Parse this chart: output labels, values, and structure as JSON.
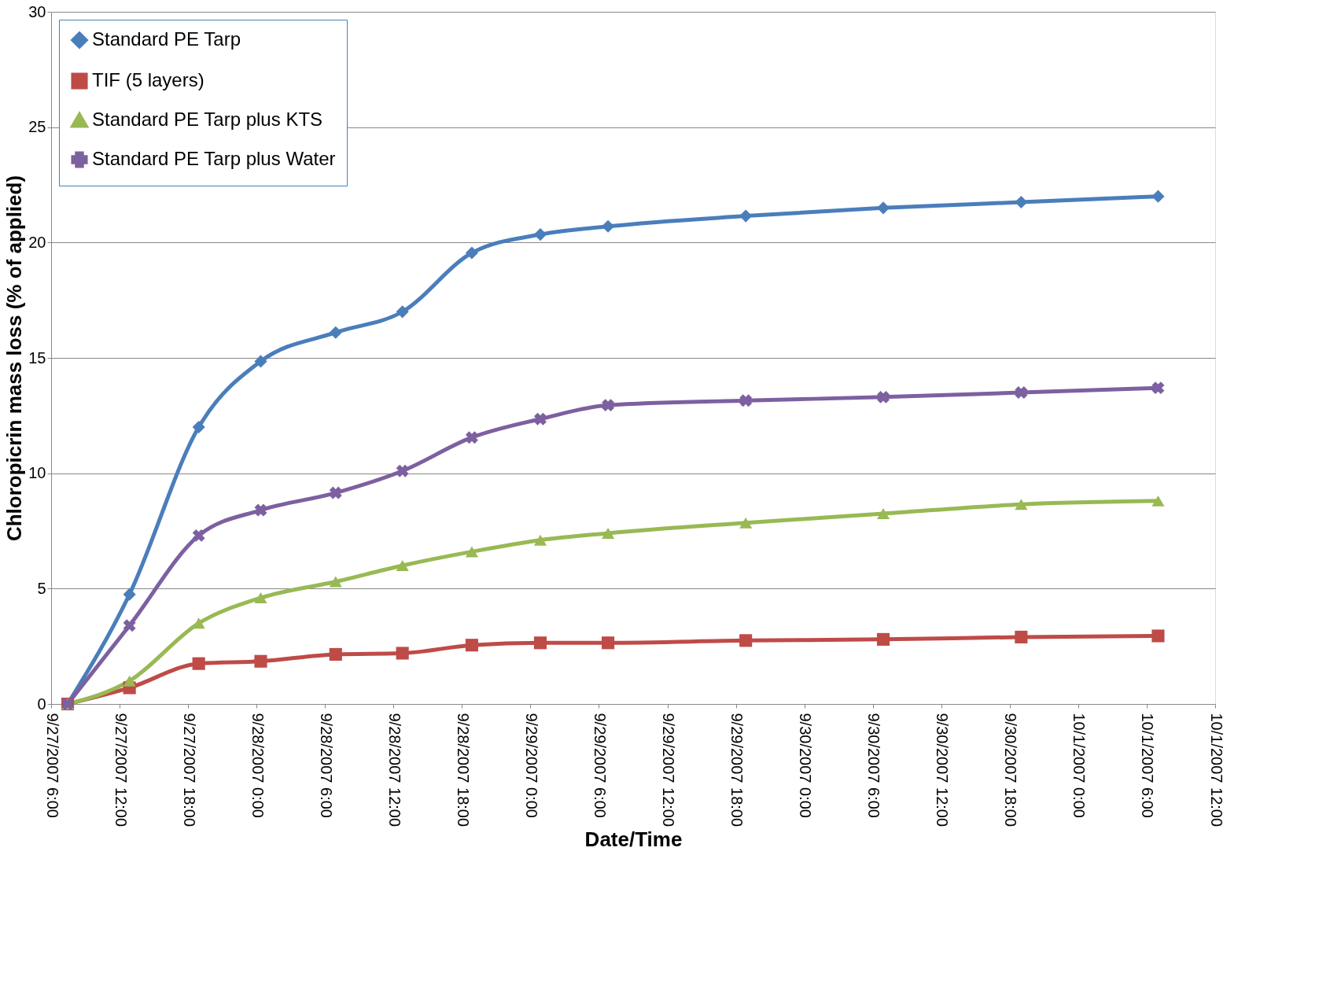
{
  "chart_data": {
    "type": "line",
    "xlabel": "Date/Time",
    "ylabel": "Chloropicrin mass loss (% of applied)",
    "x": [
      "2007-09-27T07:27",
      "2007-09-27T12:52",
      "2007-09-27T18:56",
      "2007-09-28T00:22",
      "2007-09-28T06:56",
      "2007-09-28T12:47",
      "2007-09-28T18:52",
      "2007-09-29T00:52",
      "2007-09-29T06:48",
      "2007-09-29T18:52",
      "2007-09-30T06:55",
      "2007-09-30T19:00",
      "2007-10-01T07:00"
    ],
    "series": [
      {
        "name": "Standard PE Tarp",
        "color": "#4a7ebb",
        "marker": "diamond",
        "values": [
          0,
          4.75,
          12.0,
          14.85,
          16.1,
          17.0,
          19.55,
          20.35,
          20.7,
          21.15,
          21.5,
          21.75,
          22.0
        ]
      },
      {
        "name": "TIF (5 layers)",
        "color": "#be4b48",
        "marker": "square",
        "values": [
          0,
          0.7,
          1.75,
          1.85,
          2.15,
          2.2,
          2.55,
          2.65,
          2.65,
          2.75,
          2.8,
          2.9,
          2.95
        ]
      },
      {
        "name": "Standard PE Tarp plus KTS",
        "color": "#98b954",
        "marker": "triangle",
        "values": [
          0,
          1.0,
          3.5,
          4.6,
          5.3,
          6.0,
          6.6,
          7.1,
          7.4,
          7.85,
          8.25,
          8.65,
          8.8
        ]
      },
      {
        "name": "Standard PE Tarp plus Water",
        "color": "#7d60a0",
        "marker": "cross",
        "values": [
          0,
          3.4,
          7.3,
          8.4,
          9.15,
          10.1,
          11.55,
          12.35,
          12.95,
          13.15,
          13.3,
          13.5,
          13.7
        ]
      }
    ],
    "xlim": [
      "2007-09-27T06:00",
      "2007-10-01T12:00"
    ],
    "xticks": [
      {
        "value": "2007-09-27T06:00",
        "label": "9/27/2007 6:00"
      },
      {
        "value": "2007-09-27T12:00",
        "label": "9/27/2007 12:00"
      },
      {
        "value": "2007-09-27T18:00",
        "label": "9/27/2007 18:00"
      },
      {
        "value": "2007-09-28T00:00",
        "label": "9/28/2007 0:00"
      },
      {
        "value": "2007-09-28T06:00",
        "label": "9/28/2007 6:00"
      },
      {
        "value": "2007-09-28T12:00",
        "label": "9/28/2007 12:00"
      },
      {
        "value": "2007-09-28T18:00",
        "label": "9/28/2007 18:00"
      },
      {
        "value": "2007-09-29T00:00",
        "label": "9/29/2007 0:00"
      },
      {
        "value": "2007-09-29T06:00",
        "label": "9/29/2007 6:00"
      },
      {
        "value": "2007-09-29T12:00",
        "label": "9/29/2007 12:00"
      },
      {
        "value": "2007-09-29T18:00",
        "label": "9/29/2007 18:00"
      },
      {
        "value": "2007-09-30T00:00",
        "label": "9/30/2007 0:00"
      },
      {
        "value": "2007-09-30T06:00",
        "label": "9/30/2007 6:00"
      },
      {
        "value": "2007-09-30T12:00",
        "label": "9/30/2007 12:00"
      },
      {
        "value": "2007-09-30T18:00",
        "label": "9/30/2007 18:00"
      },
      {
        "value": "2007-10-01T00:00",
        "label": "10/1/2007 0:00"
      },
      {
        "value": "2007-10-01T06:00",
        "label": "10/1/2007 6:00"
      },
      {
        "value": "2007-10-01T12:00",
        "label": "10/1/2007 12:00"
      }
    ],
    "ylim": [
      0,
      30
    ],
    "yticks": [
      0,
      5,
      10,
      15,
      20,
      25,
      30
    ],
    "grid": "y",
    "legend": "top left",
    "line_style": "solid"
  }
}
